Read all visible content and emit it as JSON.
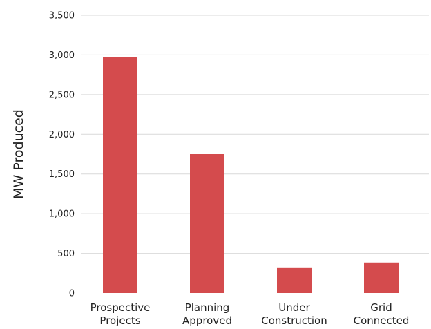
{
  "chart_data": {
    "type": "bar",
    "title": "",
    "xlabel": "",
    "ylabel": "MW Produced",
    "categories": [
      [
        "Prospective",
        "Projects"
      ],
      [
        "Planning",
        "Approved"
      ],
      [
        "Under",
        "Construction"
      ],
      [
        "Grid",
        "Connected"
      ]
    ],
    "values": [
      2975,
      1750,
      315,
      385
    ],
    "ylim": [
      0,
      3500
    ],
    "yticks": [
      0,
      500,
      1000,
      1500,
      2000,
      2500,
      3000,
      3500
    ],
    "ytick_labels": [
      "0",
      "500",
      "1,000",
      "1,500",
      "2,000",
      "2,500",
      "3,000",
      "3,500"
    ],
    "grid": true,
    "bar_color": "#d44b4d",
    "grid_color": "#d9d9d9",
    "text_color": "#222222"
  }
}
